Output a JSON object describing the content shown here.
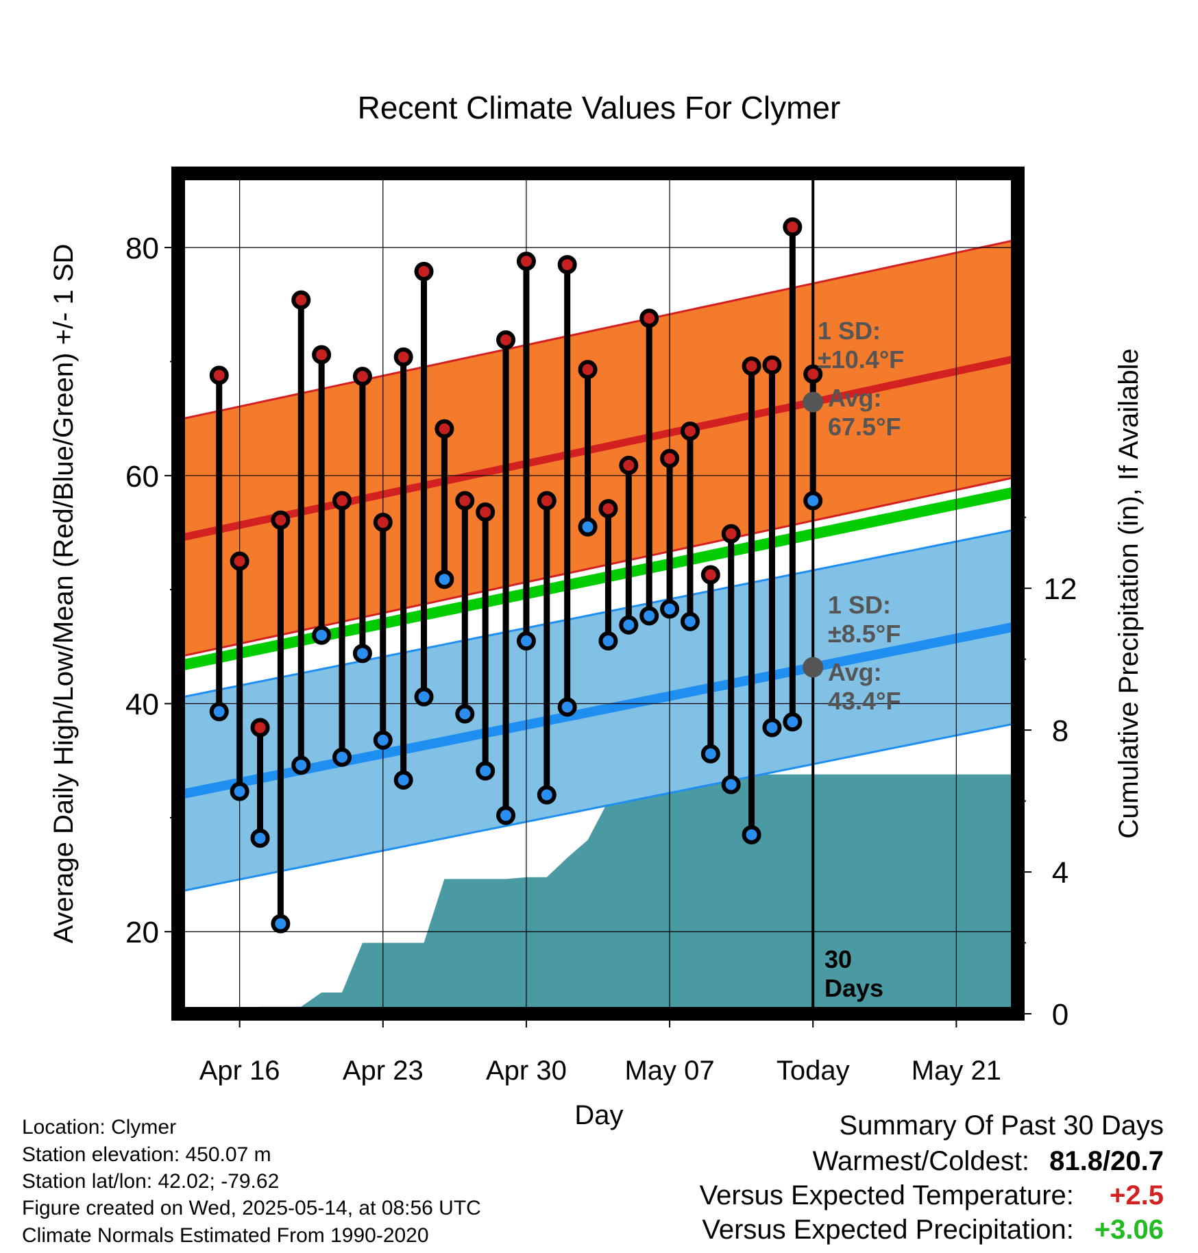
{
  "chart_data": {
    "type": "line",
    "title": "Recent Climate Values For Clymer",
    "xlabel": "Day",
    "ylabel_left": "Average Daily High/Low/Mean (Red/Blue/Green) +/- 1 SD",
    "ylabel_right": "Cumulative Precipitation (in), If Available",
    "x_ticks": [
      "Apr 16",
      "Apr 23",
      "Apr 30",
      "May 07",
      "Today",
      "May 21"
    ],
    "y_left_ticks": [
      "20",
      "40",
      "60",
      "80"
    ],
    "y_right_ticks": [
      "0",
      "4",
      "8",
      "12"
    ],
    "y_left_range": [
      12.8,
      86.5
    ],
    "y_right_range": [
      0,
      23.7
    ],
    "x_range": [
      "Apr 13",
      "May 24"
    ],
    "grid": true,
    "today": "May 14",
    "highs": [
      68.8,
      52.5,
      37.9,
      56.1,
      75.4,
      70.6,
      57.8,
      68.7,
      55.9,
      70.4,
      77.9,
      64.1,
      57.8,
      56.8,
      71.9,
      78.8,
      57.8,
      78.5,
      69.3,
      57.1,
      60.9,
      73.8,
      61.5,
      63.9,
      51.3,
      54.9,
      69.6,
      69.7,
      81.8,
      68.9
    ],
    "lows": [
      39.3,
      32.3,
      28.2,
      20.7,
      34.6,
      46.0,
      35.3,
      44.4,
      36.8,
      33.3,
      40.6,
      50.9,
      39.1,
      34.1,
      30.2,
      45.5,
      32.0,
      39.7,
      55.5,
      45.5,
      46.9,
      47.7,
      48.3,
      47.2,
      35.6,
      32.9,
      28.5,
      37.9,
      38.4,
      57.8
    ],
    "normal_high": {
      "start": 54.5,
      "end": 70.3
    },
    "normal_low": {
      "start": 32.0,
      "end": 46.8
    },
    "normal_mean": {
      "start": 43.3,
      "end": 58.6
    },
    "sd_high": 10.4,
    "sd_low": 8.5,
    "precip_cumulative": [
      0.0,
      0.0,
      0.2,
      0.2,
      0.2,
      0.6,
      0.6,
      2.0,
      2.0,
      2.0,
      2.0,
      3.8,
      3.8,
      3.8,
      3.8,
      3.85,
      3.85,
      4.4,
      4.9,
      6.0,
      6.1,
      6.5,
      6.75,
      6.75,
      6.75,
      6.75,
      6.75,
      6.75,
      6.75,
      6.75
    ],
    "annotations": {
      "high_sd_label": "1 SD:",
      "high_sd_value": "±10.4°F",
      "high_avg_label": "Avg:",
      "high_avg_value": "67.5°F",
      "low_sd_label": "1 SD:",
      "low_sd_value": "±8.5°F",
      "low_avg_label": "Avg:",
      "low_avg_value": "43.4°F",
      "days_line1": "30",
      "days_line2": "Days"
    },
    "colors": {
      "high_band": "#f47a2c",
      "high_line": "#d32121",
      "low_band": "#82c1e6",
      "low_line": "#1e8ff0",
      "mean_line": "#00cc00",
      "precip": "#4a9aa4",
      "high_dot": "#c62020",
      "low_dot": "#2a8ef0",
      "annotation": "#555555"
    }
  },
  "footer": {
    "location": "Location: Clymer",
    "elevation": "Station elevation: 450.07 m",
    "latlon": "Station lat/lon: 42.02; -79.62",
    "created": "Figure created on Wed, 2025-05-14, at 08:56 UTC",
    "normals": "Climate Normals Estimated From 1990-2020"
  },
  "summary": {
    "title": "Summary Of Past 30 Days",
    "warm_cold_label": "Warmest/Coldest:",
    "warm_cold_value": "81.8/20.7",
    "temp_label": "Versus Expected Temperature:",
    "temp_value": "+2.5",
    "temp_color": "#d32121",
    "precip_label": "Versus Expected Precipitation:",
    "precip_value": "+3.06",
    "precip_color": "#22bb22"
  }
}
